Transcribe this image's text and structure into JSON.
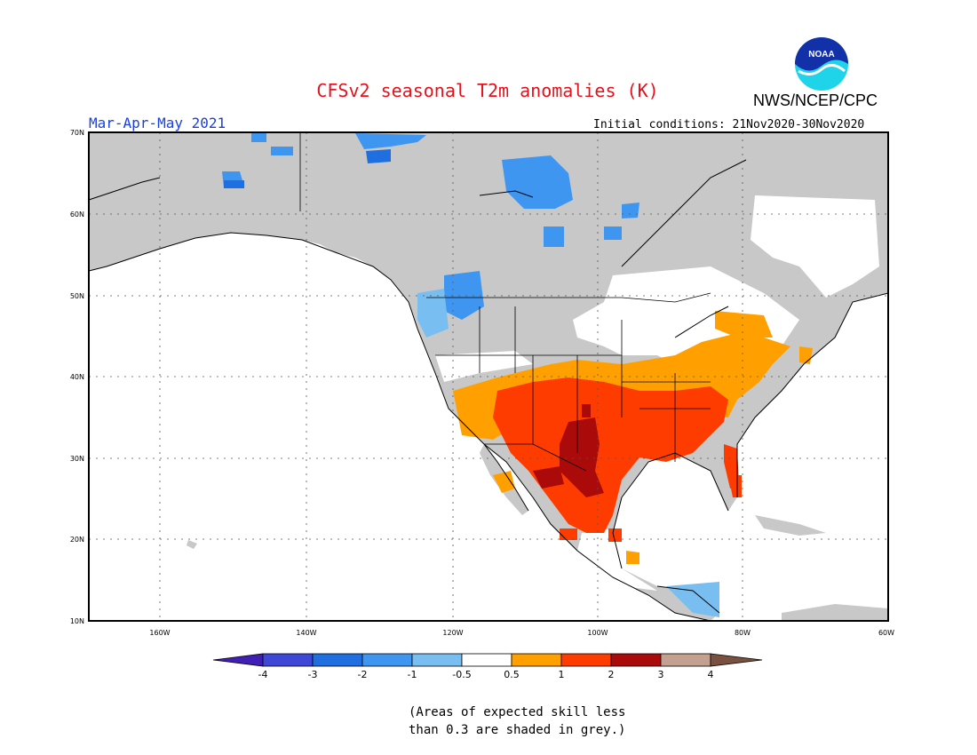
{
  "title": "CFSv2 seasonal T2m anomalies (K)",
  "agency": "NWS/NCEP/CPC",
  "logo_text": "NOAA",
  "period": "Mar-Apr-May 2021",
  "initial_conditions": "Initial conditions: 21Nov2020-30Nov2020",
  "lat_labels": [
    "70N",
    "60N",
    "50N",
    "40N",
    "30N",
    "20N",
    "10N"
  ],
  "lon_labels": [
    "160W",
    "140W",
    "120W",
    "100W",
    "80W",
    "60W"
  ],
  "colorbar": {
    "labels": [
      "-4",
      "-3",
      "-2",
      "-1",
      "-0.5",
      "0.5",
      "1",
      "2",
      "3",
      "4"
    ],
    "colors": [
      "#3f1fb4",
      "#3f47d7",
      "#1f6fe0",
      "#3f96f0",
      "#78bef0",
      "#ffffff",
      "#ffa000",
      "#ff3c00",
      "#aa0a0a",
      "#c4a090",
      "#7a5040"
    ]
  },
  "colors": {
    "land_grey": "#c8c8c8",
    "title_red": "#e8101a",
    "period_blue": "#1a3fe0"
  },
  "note_lines": [
    "(Areas of expected skill less",
    "than 0.3 are shaded in grey.)"
  ]
}
